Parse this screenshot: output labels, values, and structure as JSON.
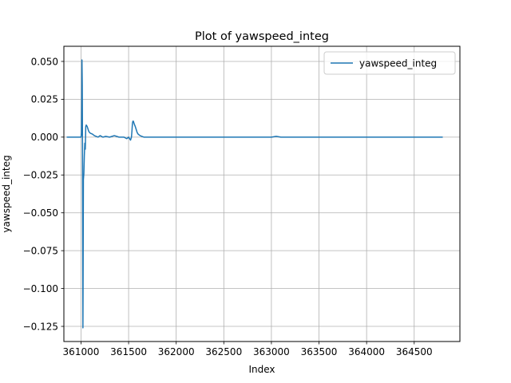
{
  "chart_data": {
    "type": "line",
    "title": "Plot of yawspeed_integ",
    "xlabel": "Index",
    "ylabel": "yawspeed_integ",
    "xlim": [
      360820,
      364980
    ],
    "ylim": [
      -0.135,
      0.06
    ],
    "xticks": [
      361000,
      361500,
      362000,
      362500,
      363000,
      363500,
      364000,
      364500
    ],
    "xtick_labels": [
      "361000",
      "361500",
      "362000",
      "362500",
      "363000",
      "363500",
      "364000",
      "364500"
    ],
    "yticks": [
      0.05,
      0.025,
      0.0,
      -0.025,
      -0.05,
      -0.075,
      -0.1,
      -0.125
    ],
    "ytick_labels": [
      "0.050",
      "0.025",
      "0.000",
      "−0.025",
      "−0.050",
      "−0.075",
      "−0.100",
      "−0.125"
    ],
    "grid": true,
    "legend_position": "top-right",
    "colors": {
      "series": "#1f77b4",
      "grid": "#b0b0b0"
    },
    "series": [
      {
        "name": "yawspeed_integ",
        "x": [
          360850,
          360980,
          361000,
          361005,
          361008,
          361010,
          361013,
          361016,
          361020,
          361022,
          361025,
          361030,
          361035,
          361040,
          361045,
          361050,
          361055,
          361060,
          361065,
          361070,
          361080,
          361090,
          361100,
          361120,
          361140,
          361160,
          361180,
          361200,
          361230,
          361260,
          361300,
          361350,
          361400,
          361450,
          361480,
          361500,
          361520,
          361530,
          361535,
          361540,
          361545,
          361550,
          361555,
          361560,
          361570,
          361580,
          361590,
          361600,
          361620,
          361640,
          361660,
          361700,
          361800,
          361900,
          362000,
          362200,
          362400,
          362600,
          362700,
          362800,
          363000,
          363050,
          363100,
          363200,
          363400,
          363600,
          363800,
          364000,
          364200,
          364400,
          364500,
          364600,
          364800
        ],
        "values": [
          0.0,
          0.0,
          0.0,
          0.003,
          0.025,
          0.051,
          0.035,
          -0.01,
          -0.126,
          -0.09,
          -0.028,
          -0.024,
          -0.012,
          -0.004,
          -0.008,
          0.007,
          0.008,
          0.0075,
          0.007,
          0.006,
          0.004,
          0.003,
          0.0025,
          0.002,
          0.001,
          0.0005,
          0.0,
          0.001,
          0.0,
          0.0005,
          0.0,
          0.001,
          0.0,
          0.0,
          -0.001,
          0.0,
          -0.002,
          0.0,
          0.004,
          0.009,
          0.0105,
          0.0105,
          0.0095,
          0.0085,
          0.007,
          0.005,
          0.003,
          0.002,
          0.001,
          0.0005,
          0.0,
          0.0,
          0.0,
          0.0,
          0.0,
          0.0,
          0.0,
          0.0,
          0.0,
          0.0,
          0.0,
          0.0005,
          0.0,
          0.0,
          0.0,
          0.0,
          0.0,
          0.0,
          0.0,
          0.0,
          0.0,
          0.0,
          0.0
        ]
      }
    ]
  }
}
